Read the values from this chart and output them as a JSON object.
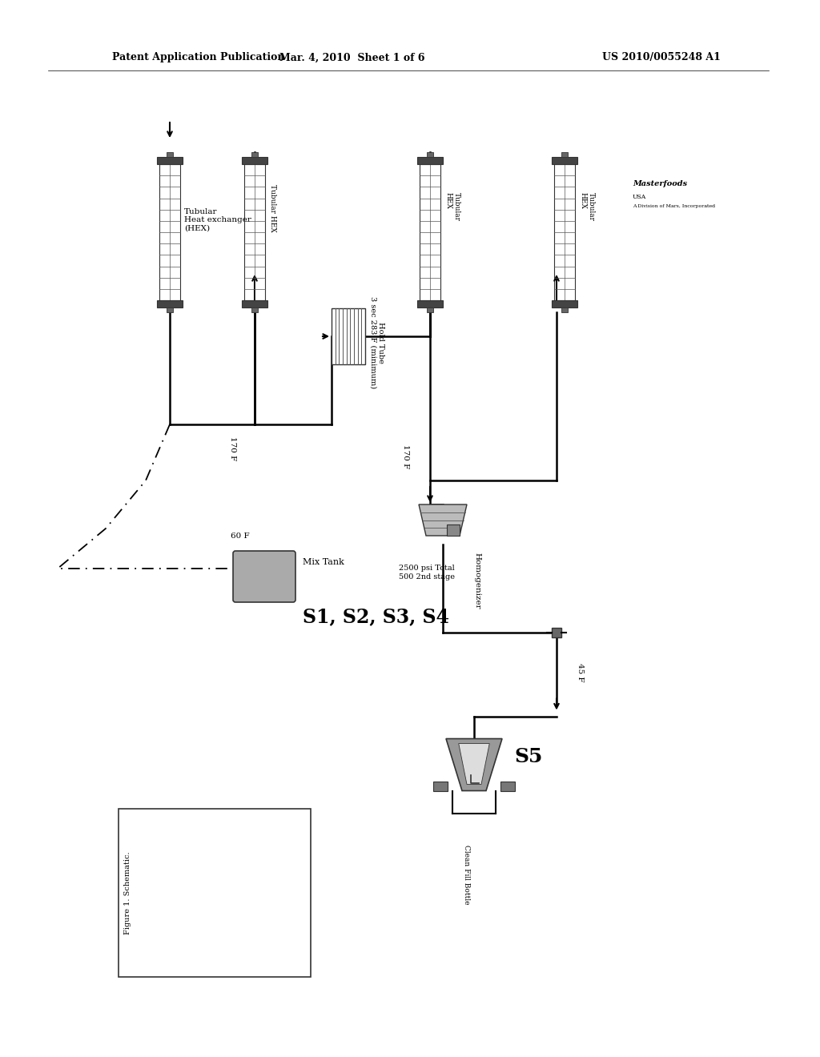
{
  "bg_color": "#ffffff",
  "header_left": "Patent Application Publication",
  "header_mid": "Mar. 4, 2010  Sheet 1 of 6",
  "header_right": "US 2010/0055248 A1",
  "figure_label": "Figure 1. Schematic.",
  "hex1_label": "Tubular\nHeat exchanger\n(HEX)",
  "hex2_label": "Tubular HEX",
  "hex3_label": "Tubular\nHEX",
  "hex4_label": "Tubular\nHEX",
  "hold_tube_line1": "Hold Tube",
  "hold_tube_line2": "3 sec 283 F (minimum)",
  "temp1": "170 F",
  "temp2": "170 F",
  "temp3": "60 F",
  "temp4": "45 F",
  "mix_tank_label": "Mix Tank",
  "sample_label": "S1, S2, S3, S4",
  "homogenizer_label": "Homogenizer",
  "homo_psi": "2500 psi Total",
  "homo_stage": "500 2nd stage",
  "s5_label": "S5",
  "fill_bottle_label": "Clean Fill Bottle",
  "masterfoods1": "Masterfoods",
  "masterfoods2": "USA",
  "masterfoods3": "A Division of Mars, Incorporated"
}
